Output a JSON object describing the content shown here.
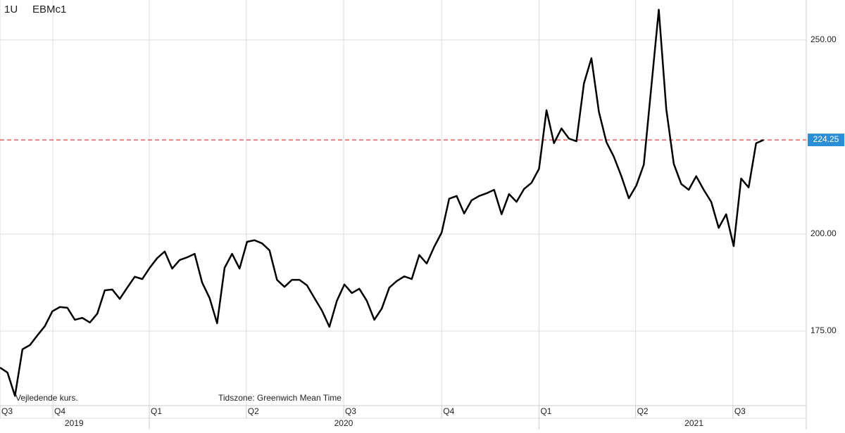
{
  "chart_data": {
    "type": "line",
    "title": "1U",
    "subtitle": "EBMc1",
    "annotations": [
      "Vejledende kurs.",
      "Tidszone: Greenwich Mean Time"
    ],
    "series": [
      {
        "name": "EBMc1",
        "color": "#000000",
        "values": [
          165.6,
          164.3,
          158.3,
          170.3,
          171.4,
          173.9,
          176.3,
          180.1,
          181.2,
          181.0,
          177.9,
          178.4,
          177.2,
          179.5,
          185.5,
          185.7,
          183.3,
          186.2,
          189.0,
          188.4,
          191.3,
          193.8,
          195.5,
          191.1,
          193.3,
          194.0,
          194.9,
          187.5,
          183.5,
          177.0,
          191.3,
          194.9,
          191.1,
          198.0,
          198.4,
          197.6,
          195.8,
          188.2,
          186.4,
          188.2,
          188.2,
          186.8,
          183.5,
          180.3,
          176.1,
          182.8,
          187.0,
          184.8,
          185.9,
          182.8,
          177.9,
          180.8,
          186.2,
          187.9,
          189.1,
          188.4,
          194.6,
          192.4,
          196.7,
          200.4,
          209.1,
          209.8,
          205.3,
          208.7,
          209.8,
          210.5,
          211.4,
          205.1,
          210.3,
          208.3,
          211.6,
          213.2,
          216.8,
          231.9,
          223.4,
          227.2,
          224.6,
          223.9,
          238.8,
          245.3,
          231.5,
          223.7,
          219.9,
          214.9,
          209.2,
          212.5,
          217.9,
          237.9,
          257.8,
          232.2,
          218.1,
          212.9,
          211.4,
          214.9,
          211.4,
          208.3,
          201.6,
          205.1,
          196.9,
          214.3,
          212.0,
          223.4,
          224.25
        ]
      }
    ],
    "last_value": 224.25,
    "last_value_color": "#d62728",
    "xlim": [
      0,
      107.7
    ],
    "xticks": [
      {
        "value": 0,
        "label": "Q3"
      },
      {
        "value": 7.06,
        "label": "Q4"
      },
      {
        "value": 19.94,
        "label": "Q1"
      },
      {
        "value": 32.9,
        "label": "Q2"
      },
      {
        "value": 45.9,
        "label": "Q3"
      },
      {
        "value": 59.0,
        "label": "Q4"
      },
      {
        "value": 72.0,
        "label": "Q1"
      },
      {
        "value": 84.9,
        "label": "Q2"
      },
      {
        "value": 97.9,
        "label": "Q3"
      }
    ],
    "year_ticks": [
      {
        "value": 9.9,
        "label": "2019"
      },
      {
        "value": 45.9,
        "label": "2020"
      },
      {
        "value": 92.7,
        "label": "2021"
      }
    ],
    "year_bounds": [
      19.94,
      72.0
    ],
    "ylim": [
      155.8,
      260.3
    ],
    "yticks": [
      {
        "value": 175,
        "label": "175.00"
      },
      {
        "value": 200,
        "label": "200.00"
      },
      {
        "value": 250,
        "label": "250.00"
      }
    ],
    "grid": true
  }
}
